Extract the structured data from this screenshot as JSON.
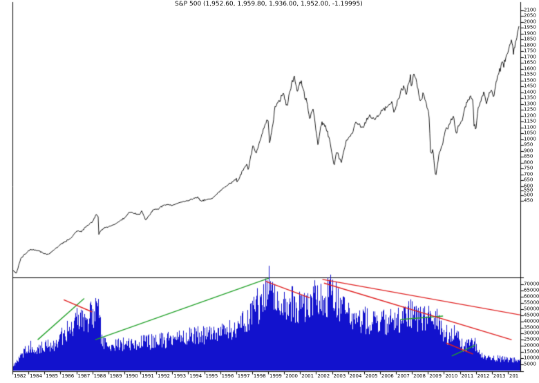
{
  "title": "S&P 500 (1,952.60, 1,959.80, 1,936.00, 1,952.00, -1.19995)",
  "colors": {
    "background": "#ffffff",
    "axis": "#000000",
    "price_line": "#000000",
    "volume_bar": "#1212cd",
    "green_trend": "#23a22a",
    "red_trend": "#e02020",
    "label_text": "#000000"
  },
  "x_axis_labels": [
    "1982",
    "1984",
    "1985",
    "1986",
    "1987",
    "1988",
    "1989",
    "1990",
    "1991",
    "1992",
    "1993",
    "1994",
    "1995",
    "1996",
    "1997",
    "1998",
    "1999",
    "2000",
    "2001",
    "2002",
    "2003",
    "2004",
    "2005",
    "2006",
    "2007",
    "2008",
    "2009",
    "2010",
    "2011",
    "2012",
    "2013",
    "201"
  ],
  "chart_data": [
    {
      "type": "line",
      "name": "S&P 500 weekly price",
      "title": "S&P 500 (1,952.60, 1,959.80, 1,936.00, 1,952.00, -1.19995)",
      "x_range": [
        1982.35,
        2014.55
      ],
      "y_scale": "semi-log (linear 600-2150 over upper region, log 100-600 compressed below)",
      "grid": false,
      "legend": false,
      "axis_side": "right",
      "y_axis_labels": [
        2100,
        2050,
        2000,
        1950,
        1900,
        1850,
        1800,
        1750,
        1700,
        1650,
        1600,
        1550,
        1500,
        1450,
        1400,
        1350,
        1300,
        1250,
        1200,
        1150,
        1100,
        1050,
        1000,
        950,
        900,
        850,
        800,
        750,
        700,
        650,
        600,
        550,
        500,
        450
      ],
      "points": [
        [
          1982.4,
          109
        ],
        [
          1982.6,
          102
        ],
        [
          1982.9,
          140
        ],
        [
          1983.5,
          168
        ],
        [
          1983.9,
          165
        ],
        [
          1984.3,
          155
        ],
        [
          1984.6,
          150
        ],
        [
          1985.0,
          167
        ],
        [
          1985.5,
          188
        ],
        [
          1986.0,
          207
        ],
        [
          1986.5,
          245
        ],
        [
          1986.7,
          236
        ],
        [
          1987.0,
          264
        ],
        [
          1987.4,
          290
        ],
        [
          1987.65,
          335
        ],
        [
          1987.78,
          328
        ],
        [
          1987.82,
          225
        ],
        [
          1987.95,
          245
        ],
        [
          1988.2,
          258
        ],
        [
          1988.6,
          270
        ],
        [
          1989.0,
          285
        ],
        [
          1989.5,
          320
        ],
        [
          1989.75,
          355
        ],
        [
          1990.0,
          350
        ],
        [
          1990.4,
          338
        ],
        [
          1990.55,
          365
        ],
        [
          1990.78,
          300
        ],
        [
          1991.0,
          330
        ],
        [
          1991.3,
          375
        ],
        [
          1991.6,
          380
        ],
        [
          1992.0,
          415
        ],
        [
          1992.5,
          410
        ],
        [
          1993.0,
          435
        ],
        [
          1993.5,
          450
        ],
        [
          1994.1,
          480
        ],
        [
          1994.3,
          445
        ],
        [
          1994.7,
          460
        ],
        [
          1995.0,
          465
        ],
        [
          1995.5,
          545
        ],
        [
          1996.0,
          615
        ],
        [
          1996.3,
          640
        ],
        [
          1996.55,
          670
        ],
        [
          1996.6,
          635
        ],
        [
          1997.0,
          745
        ],
        [
          1997.2,
          790
        ],
        [
          1997.3,
          740
        ],
        [
          1997.6,
          950
        ],
        [
          1997.8,
          880
        ],
        [
          1998.0,
          970
        ],
        [
          1998.3,
          1100
        ],
        [
          1998.55,
          1180
        ],
        [
          1998.65,
          960
        ],
        [
          1998.9,
          1160
        ],
        [
          1999.0,
          1280
        ],
        [
          1999.3,
          1330
        ],
        [
          1999.5,
          1400
        ],
        [
          1999.75,
          1280
        ],
        [
          2000.0,
          1450
        ],
        [
          2000.22,
          1527
        ],
        [
          2000.4,
          1420
        ],
        [
          2000.65,
          1500
        ],
        [
          2000.9,
          1350
        ],
        [
          2001.0,
          1340
        ],
        [
          2001.2,
          1170
        ],
        [
          2001.4,
          1260
        ],
        [
          2001.72,
          965
        ],
        [
          2001.95,
          1140
        ],
        [
          2002.2,
          1120
        ],
        [
          2002.45,
          990
        ],
        [
          2002.75,
          777
        ],
        [
          2002.9,
          900
        ],
        [
          2003.2,
          800
        ],
        [
          2003.5,
          985
        ],
        [
          2003.9,
          1050
        ],
        [
          2004.1,
          1140
        ],
        [
          2004.6,
          1100
        ],
        [
          2004.95,
          1210
        ],
        [
          2005.3,
          1160
        ],
        [
          2005.7,
          1230
        ],
        [
          2006.0,
          1270
        ],
        [
          2006.4,
          1310
        ],
        [
          2006.55,
          1235
        ],
        [
          2007.0,
          1420
        ],
        [
          2007.2,
          1440
        ],
        [
          2007.3,
          1380
        ],
        [
          2007.58,
          1550
        ],
        [
          2007.65,
          1430
        ],
        [
          2007.78,
          1565
        ],
        [
          2008.0,
          1470
        ],
        [
          2008.2,
          1320
        ],
        [
          2008.4,
          1390
        ],
        [
          2008.7,
          1250
        ],
        [
          2008.78,
          1160
        ],
        [
          2008.85,
          900
        ],
        [
          2008.95,
          880
        ],
        [
          2009.0,
          930
        ],
        [
          2009.18,
          676
        ],
        [
          2009.4,
          880
        ],
        [
          2009.6,
          950
        ],
        [
          2009.75,
          1060
        ],
        [
          2010.0,
          1115
        ],
        [
          2010.3,
          1210
        ],
        [
          2010.5,
          1030
        ],
        [
          2010.6,
          1100
        ],
        [
          2010.9,
          1180
        ],
        [
          2011.0,
          1260
        ],
        [
          2011.35,
          1360
        ],
        [
          2011.55,
          1340
        ],
        [
          2011.6,
          1120
        ],
        [
          2011.75,
          1100
        ],
        [
          2011.85,
          1260
        ],
        [
          2012.0,
          1310
        ],
        [
          2012.25,
          1410
        ],
        [
          2012.4,
          1310
        ],
        [
          2012.7,
          1440
        ],
        [
          2012.85,
          1360
        ],
        [
          2013.0,
          1480
        ],
        [
          2013.4,
          1660
        ],
        [
          2013.5,
          1630
        ],
        [
          2013.9,
          1800
        ],
        [
          2014.0,
          1840
        ],
        [
          2014.1,
          1740
        ],
        [
          2014.45,
          1952
        ]
      ]
    },
    {
      "type": "bar",
      "name": "Volume",
      "x_range": [
        1982.35,
        2014.55
      ],
      "axis_side": "right",
      "grid": false,
      "ylim": [
        0,
        74000
      ],
      "y_axis_labels": [
        70000,
        65000,
        60000,
        55000,
        50000,
        45000,
        40000,
        35000,
        30000,
        25000,
        20000,
        15000,
        10000,
        5000
      ],
      "points": [
        [
          1982.4,
          4000
        ],
        [
          1983.0,
          14000
        ],
        [
          1983.5,
          20000
        ],
        [
          1984.0,
          18000
        ],
        [
          1985.0,
          22000
        ],
        [
          1985.5,
          28000
        ],
        [
          1986.0,
          35000
        ],
        [
          1986.5,
          42000
        ],
        [
          1987.0,
          40000
        ],
        [
          1987.3,
          45000
        ],
        [
          1987.8,
          47000
        ],
        [
          1988.0,
          24000
        ],
        [
          1988.5,
          20000
        ],
        [
          1989.0,
          21000
        ],
        [
          1990.0,
          22000
        ],
        [
          1991.0,
          23000
        ],
        [
          1992.0,
          25000
        ],
        [
          1993.0,
          27000
        ],
        [
          1994.0,
          28000
        ],
        [
          1995.0,
          29000
        ],
        [
          1996.0,
          33000
        ],
        [
          1997.0,
          38000
        ],
        [
          1997.5,
          45000
        ],
        [
          1997.8,
          55000
        ],
        [
          1998.0,
          50000
        ],
        [
          1998.6,
          68000
        ],
        [
          1998.8,
          60000
        ],
        [
          1999.0,
          55000
        ],
        [
          1999.5,
          52000
        ],
        [
          2000.0,
          55000
        ],
        [
          2000.5,
          52000
        ],
        [
          2001.0,
          53000
        ],
        [
          2001.7,
          62000
        ],
        [
          2002.0,
          52000
        ],
        [
          2002.6,
          66000
        ],
        [
          2002.8,
          60000
        ],
        [
          2003.0,
          55000
        ],
        [
          2003.5,
          48000
        ],
        [
          2004.0,
          42000
        ],
        [
          2005.0,
          40000
        ],
        [
          2006.0,
          39000
        ],
        [
          2007.0,
          41000
        ],
        [
          2007.6,
          46000
        ],
        [
          2008.0,
          42000
        ],
        [
          2008.8,
          46000
        ],
        [
          2009.2,
          42000
        ],
        [
          2009.5,
          34000
        ],
        [
          2010.0,
          28000
        ],
        [
          2010.4,
          32000
        ],
        [
          2010.8,
          22000
        ],
        [
          2011.0,
          20000
        ],
        [
          2011.6,
          24000
        ],
        [
          2012.0,
          14000
        ],
        [
          2012.5,
          11000
        ],
        [
          2013.0,
          10000
        ],
        [
          2013.5,
          9000
        ],
        [
          2014.0,
          8500
        ],
        [
          2014.5,
          8000
        ]
      ],
      "trendlines": {
        "green": [
          [
            1983.95,
            25000,
            1986.9,
            58500
          ],
          [
            1987.6,
            25000,
            1998.6,
            75000
          ],
          [
            2006.95,
            41400,
            2009.65,
            44200
          ],
          [
            2010.2,
            11800,
            2011.7,
            20700
          ]
        ],
        "red": [
          [
            1985.6,
            57500,
            1987.4,
            47600
          ],
          [
            1998.4,
            72500,
            2001.2,
            59000
          ],
          [
            2002.0,
            74000,
            2014.7,
            44800
          ],
          [
            2002.1,
            71000,
            2014.0,
            25000
          ],
          [
            2009.85,
            22400,
            2011.55,
            13400
          ]
        ]
      }
    }
  ]
}
